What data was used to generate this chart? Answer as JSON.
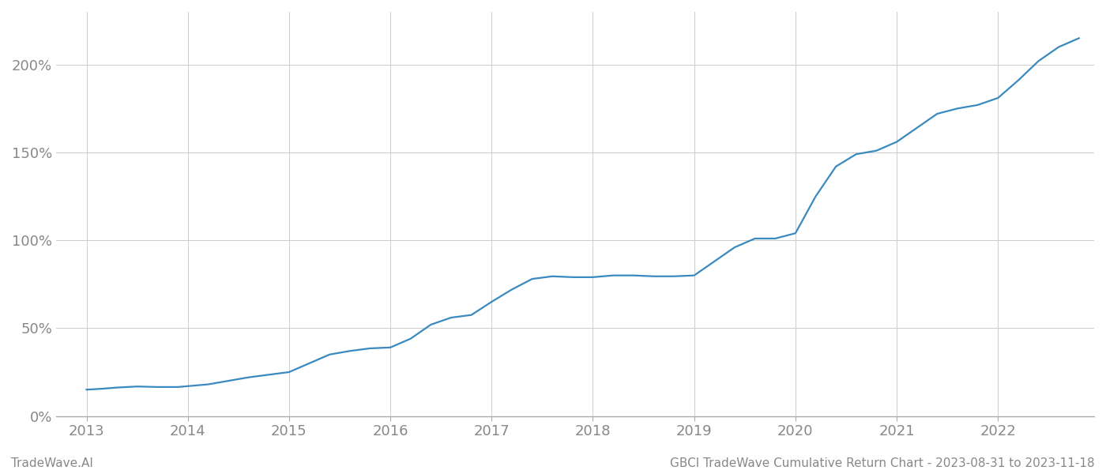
{
  "footer_left": "TradeWave.AI",
  "footer_right": "GBCI TradeWave Cumulative Return Chart - 2023-08-31 to 2023-11-18",
  "line_color": "#3a8abf",
  "background_color": "#ffffff",
  "grid_color": "#cccccc",
  "x_years": [
    2013,
    2014,
    2015,
    2016,
    2017,
    2018,
    2019,
    2020,
    2021,
    2022
  ],
  "data_x": [
    2013.0,
    2013.15,
    2013.3,
    2013.5,
    2013.7,
    2013.9,
    2014.0,
    2014.2,
    2014.4,
    2014.6,
    2014.8,
    2015.0,
    2015.2,
    2015.4,
    2015.6,
    2015.8,
    2016.0,
    2016.2,
    2016.4,
    2016.6,
    2016.8,
    2017.0,
    2017.2,
    2017.4,
    2017.6,
    2017.8,
    2018.0,
    2018.2,
    2018.4,
    2018.6,
    2018.8,
    2019.0,
    2019.2,
    2019.4,
    2019.6,
    2019.8,
    2020.0,
    2020.2,
    2020.4,
    2020.6,
    2020.8,
    2021.0,
    2021.2,
    2021.4,
    2021.6,
    2021.8,
    2022.0,
    2022.2,
    2022.4,
    2022.6,
    2022.8
  ],
  "data_y": [
    15,
    15.5,
    16.2,
    16.8,
    16.5,
    16.5,
    17,
    18,
    20,
    22,
    23.5,
    25,
    30,
    35,
    37,
    38.5,
    39,
    44,
    52,
    56,
    57.5,
    65,
    72,
    78,
    79.5,
    79,
    79,
    80,
    80,
    79.5,
    79.5,
    80,
    88,
    96,
    101,
    101,
    104,
    125,
    142,
    149,
    151,
    156,
    164,
    172,
    175,
    177,
    181,
    191,
    202,
    210,
    215
  ],
  "ylim_min": 0,
  "ylim_max": 230,
  "yticks": [
    0,
    50,
    100,
    150,
    200
  ],
  "xlim_min": 2012.7,
  "xlim_max": 2022.95,
  "line_width": 1.6,
  "footer_fontsize": 11,
  "tick_fontsize": 13,
  "tick_color": "#888888",
  "axis_color": "#aaaaaa"
}
